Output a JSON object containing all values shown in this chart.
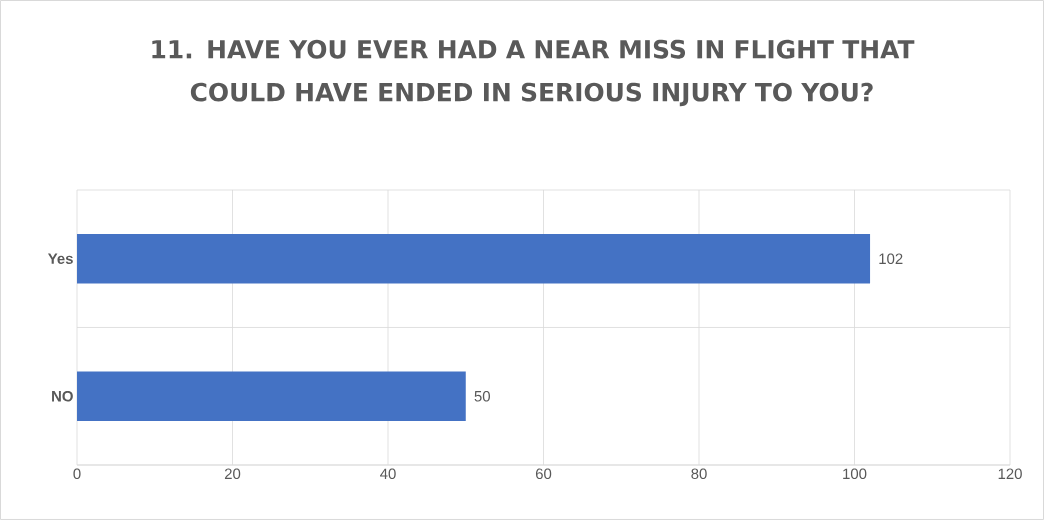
{
  "chart_data": {
    "type": "bar",
    "orientation": "horizontal",
    "title": "11. HAVE YOU EVER HAD A NEAR MISS IN FLIGHT THAT COULD HAVE ENDED IN SERIOUS INJURY TO YOU?",
    "categories": [
      "Yes",
      "NO"
    ],
    "values": [
      102,
      50
    ],
    "color": "#4472c4",
    "xlim": [
      0,
      120
    ],
    "xticks": [
      0,
      20,
      40,
      60,
      80,
      100,
      120
    ],
    "grid": true,
    "data_labels": true
  }
}
